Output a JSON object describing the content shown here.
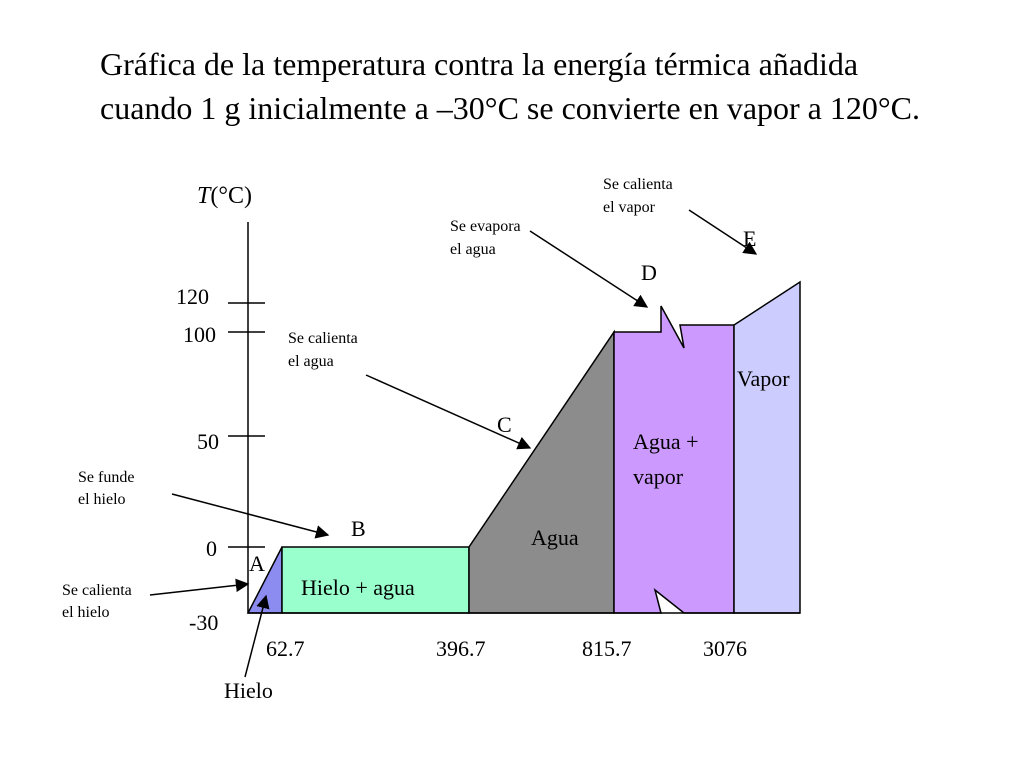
{
  "title": "Gráfica de la temperatura contra la energía térmica añadida cuando 1 g inicialmente a –30°C se convierte en vapor a 120°C.",
  "y_axis": {
    "label_italic": "T",
    "label_unit": "(°C)",
    "ticks": [
      "120",
      "100",
      "50",
      "0",
      "-30"
    ]
  },
  "x_axis": {
    "ticks": [
      "62.7",
      "396.7",
      "815.7",
      "3076"
    ]
  },
  "points": {
    "A": "A",
    "B": "B",
    "C": "C",
    "D": "D",
    "E": "E"
  },
  "regions": {
    "hielo_agua": "Hielo + agua",
    "agua": "Agua",
    "agua_vapor_1": "Agua +",
    "agua_vapor_2": "vapor",
    "vapor": "Vapor"
  },
  "annotations": {
    "calienta_hielo_1": "Se calienta",
    "calienta_hielo_2": "el hielo",
    "funde_hielo_1": "Se funde",
    "funde_hielo_2": "el hielo",
    "calienta_agua_1": "Se calienta",
    "calienta_agua_2": "el agua",
    "evapora_agua_1": "Se evapora",
    "evapora_agua_2": "el agua",
    "calienta_vapor_1": "Se calienta",
    "calienta_vapor_2": "el vapor",
    "hielo": "Hielo"
  },
  "colors": {
    "hielo": "#8c8cf0",
    "hielo_agua": "#99ffcc",
    "agua": "#8c8c8c",
    "agua_vapor": "#cc99ff",
    "vapor": "#ccccff"
  }
}
